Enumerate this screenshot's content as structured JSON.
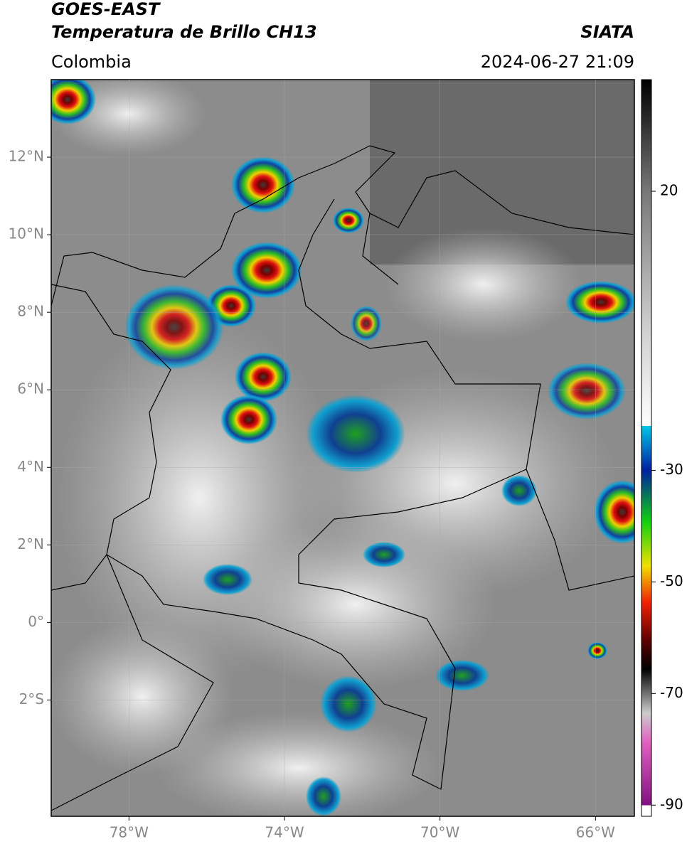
{
  "header": {
    "title": "GOES-EAST",
    "subtitle": "Temperatura de Brillo CH13",
    "source": "SIATA",
    "region": "Colombia",
    "datetime": "2024-06-27 21:09"
  },
  "map": {
    "xlim": [
      -80,
      -65
    ],
    "ylim": [
      -5,
      14
    ],
    "xticks": [
      {
        "value": -78,
        "label": "78°W"
      },
      {
        "value": -74,
        "label": "74°W"
      },
      {
        "value": -70,
        "label": "70°W"
      },
      {
        "value": -66,
        "label": "66°W"
      }
    ],
    "yticks": [
      {
        "value": 12,
        "label": "12°N"
      },
      {
        "value": 10,
        "label": "10°N"
      },
      {
        "value": 8,
        "label": "8°N"
      },
      {
        "value": 6,
        "label": "6°N"
      },
      {
        "value": 4,
        "label": "4°N"
      },
      {
        "value": 2,
        "label": "2°N"
      },
      {
        "value": 0,
        "label": "0°"
      },
      {
        "value": -2,
        "label": "2°S"
      }
    ],
    "grid": true
  },
  "colorbar": {
    "lim": [
      -92,
      40
    ],
    "ticks": [
      20,
      -30,
      -50,
      -70,
      -90
    ]
  }
}
